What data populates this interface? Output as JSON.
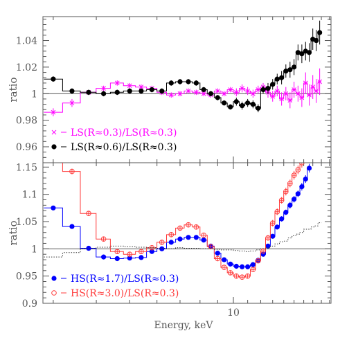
{
  "chart_data": [
    {
      "type": "line",
      "xlabel": "",
      "ylabel": "ratio",
      "xscale": "log",
      "xlim": [
        2.8,
        19.2
      ],
      "ylim": [
        0.948,
        1.058
      ],
      "yticks": [
        0.96,
        0.98,
        1,
        1.02,
        1.04
      ],
      "ytick_labels": [
        "0.96",
        "0.98",
        "1",
        "1.02",
        "1.04"
      ],
      "reference_line": 1,
      "legend_position": "bottom-left",
      "series": [
        {
          "name": "LS(R≈0.3)/LS(R≈0.3)",
          "style": "crosses with error bars",
          "color": "#ff00ff",
          "x": [
            3.0,
            3.4,
            3.8,
            4.2,
            4.6,
            5.0,
            5.4,
            5.8,
            6.2,
            6.6,
            7.0,
            7.4,
            7.8,
            8.2,
            8.6,
            9.0,
            9.4,
            9.8,
            10.2,
            10.6,
            11.0,
            11.4,
            11.8,
            12.2,
            12.6,
            13.0,
            13.4,
            13.8,
            14.2,
            14.6,
            15.0,
            15.4,
            15.8,
            16.2,
            16.6,
            17.0,
            17.4,
            17.8
          ],
          "y": [
            0.986,
            0.993,
            1.001,
            1.004,
            1.008,
            1.006,
            1.005,
            1.004,
            1.001,
            0.999,
            1.0,
            1.002,
            1.001,
            1.0,
            0.999,
            1.002,
            1.0,
            1.003,
            1.001,
            1.004,
            1.002,
            1.0,
            1.003,
            1.005,
            1.001,
            0.998,
            1.002,
            0.996,
            1.0,
            0.995,
            1.003,
            1.0,
            0.997,
            1.008,
            0.999,
            1.005,
            1.002,
            1.009
          ],
          "y_err": [
            0.003,
            0.003,
            0.002,
            0.002,
            0.002,
            0.002,
            0.002,
            0.002,
            0.002,
            0.002,
            0.002,
            0.002,
            0.002,
            0.002,
            0.002,
            0.002,
            0.002,
            0.002,
            0.003,
            0.003,
            0.003,
            0.003,
            0.003,
            0.003,
            0.004,
            0.004,
            0.004,
            0.005,
            0.005,
            0.006,
            0.006,
            0.006,
            0.007,
            0.008,
            0.008,
            0.009,
            0.009,
            0.01
          ]
        },
        {
          "name": "LS(R≈0.6)/LS(R≈0.3)",
          "style": "filled circles with error bars",
          "color": "#000000",
          "x": [
            3.0,
            3.4,
            3.8,
            4.2,
            4.6,
            5.0,
            5.4,
            5.8,
            6.2,
            6.6,
            7.0,
            7.4,
            7.8,
            8.2,
            8.6,
            9.0,
            9.4,
            9.8,
            10.2,
            10.6,
            11.0,
            11.4,
            11.8,
            12.2,
            12.6,
            13.0,
            13.4,
            13.8,
            14.2,
            14.6,
            15.0,
            15.4,
            15.8,
            16.2,
            16.6,
            17.0,
            17.4,
            17.8
          ],
          "y": [
            1.011,
            1.002,
            1.001,
            1.0,
            1.001,
            1.002,
            1.002,
            1.003,
            1.002,
            1.008,
            1.009,
            1.009,
            1.008,
            1.003,
            1.0,
            0.997,
            0.993,
            0.99,
            0.994,
            0.991,
            0.993,
            0.992,
            0.989,
            1.003,
            1.004,
            1.007,
            1.011,
            1.012,
            1.017,
            1.018,
            1.02,
            1.031,
            1.03,
            1.032,
            1.031,
            1.041,
            1.04,
            1.046
          ],
          "y_err": [
            0.002,
            0.002,
            0.002,
            0.002,
            0.002,
            0.002,
            0.002,
            0.002,
            0.002,
            0.002,
            0.002,
            0.002,
            0.002,
            0.002,
            0.002,
            0.002,
            0.002,
            0.002,
            0.003,
            0.003,
            0.003,
            0.003,
            0.003,
            0.003,
            0.004,
            0.004,
            0.004,
            0.005,
            0.005,
            0.006,
            0.006,
            0.006,
            0.007,
            0.007,
            0.007,
            0.008,
            0.008,
            0.009
          ]
        }
      ]
    },
    {
      "type": "line",
      "xlabel": "Energy, keV",
      "ylabel": "ratio",
      "xscale": "log",
      "xlim": [
        2.8,
        19.2
      ],
      "ylim": [
        0.9,
        1.158
      ],
      "xticks": [
        10
      ],
      "xtick_labels": [
        "10"
      ],
      "yticks": [
        0.9,
        0.95,
        1,
        1.05,
        1.1,
        1.15
      ],
      "ytick_labels": [
        "0.9",
        "0.95",
        "1",
        "1.05",
        "1.1",
        "1.15"
      ],
      "reference_line": 1,
      "legend_position": "bottom-left",
      "series": [
        {
          "name": "HS(R≈1.7)/LS(R≈0.3)",
          "style": "filled circles with error bars",
          "color": "#0000ff",
          "x": [
            3.0,
            3.4,
            3.8,
            4.2,
            4.6,
            5.0,
            5.4,
            5.8,
            6.2,
            6.6,
            7.0,
            7.4,
            7.8,
            8.2,
            8.6,
            9.0,
            9.4,
            9.8,
            10.2,
            10.6,
            11.0,
            11.4,
            11.8,
            12.2,
            12.6,
            13.0,
            13.4,
            13.8,
            14.2,
            14.6,
            15.0,
            15.4,
            15.8,
            16.2,
            16.6
          ],
          "y": [
            1.075,
            1.041,
            1.001,
            0.985,
            0.982,
            0.983,
            0.984,
            0.995,
            1.0,
            1.012,
            1.018,
            1.021,
            1.021,
            1.016,
            1.005,
            0.992,
            0.98,
            0.972,
            0.968,
            0.967,
            0.967,
            0.971,
            0.979,
            0.99,
            1.005,
            1.023,
            1.04,
            1.055,
            1.067,
            1.08,
            1.091,
            1.101,
            1.114,
            1.128,
            1.148
          ],
          "y_err": [
            0.004,
            0.003,
            0.003,
            0.003,
            0.003,
            0.003,
            0.003,
            0.003,
            0.003,
            0.003,
            0.003,
            0.003,
            0.003,
            0.003,
            0.003,
            0.003,
            0.003,
            0.003,
            0.003,
            0.003,
            0.003,
            0.003,
            0.003,
            0.003,
            0.004,
            0.004,
            0.004,
            0.005,
            0.005,
            0.006,
            0.006,
            0.006,
            0.007,
            0.007,
            0.008
          ]
        },
        {
          "name": "HS(R≈3.0)/LS(R≈0.3)",
          "style": "open circles with error bars",
          "color": "#ff3b3b",
          "x": [
            3.0,
            3.4,
            3.8,
            4.2,
            4.6,
            5.0,
            5.4,
            5.8,
            6.2,
            6.6,
            7.0,
            7.4,
            7.8,
            8.2,
            8.6,
            9.0,
            9.4,
            9.8,
            10.2,
            10.6,
            11.0,
            11.4,
            11.8,
            12.2,
            12.6,
            13.0,
            13.4,
            13.8,
            14.2,
            14.6,
            15.0,
            15.4,
            15.8
          ],
          "y": [
            1.168,
            1.142,
            1.065,
            1.018,
            0.995,
            0.99,
            0.995,
            1.002,
            1.012,
            1.026,
            1.038,
            1.044,
            1.04,
            1.025,
            1.004,
            0.982,
            0.966,
            0.956,
            0.95,
            0.948,
            0.95,
            0.962,
            0.978,
            0.996,
            1.02,
            1.047,
            1.068,
            1.089,
            1.105,
            1.12,
            1.135,
            1.145,
            1.158
          ],
          "y_err": [
            0.005,
            0.005,
            0.004,
            0.004,
            0.004,
            0.004,
            0.004,
            0.004,
            0.004,
            0.004,
            0.004,
            0.004,
            0.004,
            0.004,
            0.004,
            0.004,
            0.004,
            0.004,
            0.004,
            0.004,
            0.004,
            0.004,
            0.004,
            0.005,
            0.005,
            0.006,
            0.006,
            0.006,
            0.007,
            0.007,
            0.008,
            0.008,
            0.009
          ]
        },
        {
          "name": "",
          "style": "dotted line",
          "color": "#333333",
          "x": [
            3.0,
            3.4,
            3.8,
            4.2,
            4.6,
            5.0,
            5.4,
            5.8,
            6.2,
            6.6,
            7.0,
            7.4,
            7.8,
            8.2,
            8.6,
            9.0,
            9.4,
            9.8,
            10.2,
            10.6,
            11.0,
            11.4,
            11.8,
            12.2,
            12.6,
            13.0,
            13.4,
            13.8,
            14.2,
            14.6,
            15.0,
            15.4,
            15.8,
            16.2,
            16.6,
            17.0,
            17.4,
            17.8
          ],
          "y": [
            0.985,
            0.993,
            1.0,
            1.003,
            1.005,
            1.004,
            1.003,
            1.002,
            1.001,
            1.0,
            1.002,
            1.001,
            1.001,
            1.0,
            1.0,
            0.999,
            0.998,
            0.998,
            0.997,
            0.996,
            0.995,
            0.996,
            0.998,
            1.0,
            1.002,
            1.005,
            1.009,
            1.013,
            1.014,
            1.02,
            1.024,
            1.027,
            1.03,
            1.036,
            1.036,
            1.04,
            1.042,
            1.048
          ]
        }
      ]
    }
  ]
}
